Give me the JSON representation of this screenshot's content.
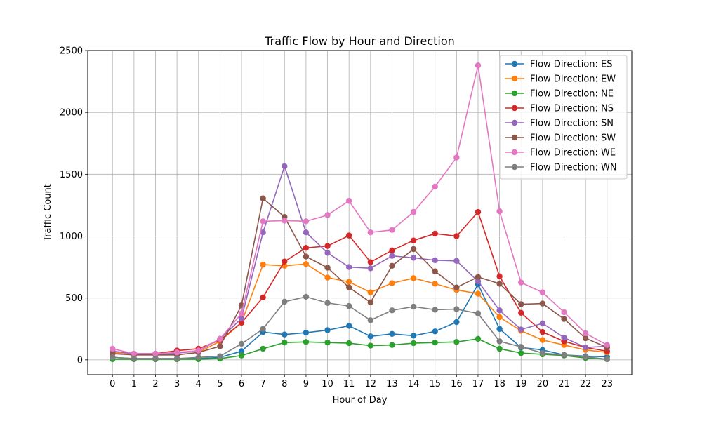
{
  "chart_data": {
    "type": "line",
    "title": "Traffic Flow by Hour and Direction",
    "xlabel": "Hour of Day",
    "ylabel": "Traffic Count",
    "x": [
      0,
      1,
      2,
      3,
      4,
      5,
      6,
      7,
      8,
      9,
      10,
      11,
      12,
      13,
      14,
      15,
      16,
      17,
      18,
      19,
      20,
      21,
      22,
      23
    ],
    "x_tick_labels": [
      "0",
      "1",
      "2",
      "3",
      "4",
      "5",
      "6",
      "7",
      "8",
      "9",
      "10",
      "11",
      "12",
      "13",
      "14",
      "15",
      "16",
      "17",
      "18",
      "19",
      "20",
      "21",
      "22",
      "23"
    ],
    "xlim": [
      -1.15,
      24.15
    ],
    "ylim": [
      -120,
      2500
    ],
    "y_ticks": [
      0,
      500,
      1000,
      1500,
      2000,
      2500
    ],
    "y_tick_labels": [
      "0",
      "500",
      "1000",
      "1500",
      "2000",
      "2500"
    ],
    "grid": true,
    "legend_position": "upper right",
    "series": [
      {
        "name": "Flow Direction: ES",
        "color": "#1f77b4",
        "values": [
          20,
          10,
          10,
          10,
          10,
          20,
          70,
          225,
          205,
          220,
          240,
          275,
          190,
          210,
          195,
          230,
          305,
          610,
          250,
          100,
          80,
          40,
          30,
          25
        ]
      },
      {
        "name": "Flow Direction: EW",
        "color": "#ff7f0e",
        "values": [
          60,
          40,
          40,
          40,
          60,
          150,
          300,
          770,
          760,
          775,
          665,
          630,
          545,
          620,
          660,
          615,
          565,
          535,
          345,
          235,
          160,
          120,
          80,
          60
        ]
      },
      {
        "name": "Flow Direction: NE",
        "color": "#2ca02c",
        "values": [
          5,
          5,
          5,
          5,
          5,
          10,
          35,
          90,
          140,
          145,
          140,
          135,
          115,
          120,
          135,
          140,
          145,
          170,
          90,
          55,
          45,
          35,
          15,
          5
        ]
      },
      {
        "name": "Flow Direction: NS",
        "color": "#d62728",
        "values": [
          70,
          50,
          50,
          75,
          90,
          160,
          300,
          505,
          795,
          905,
          920,
          1005,
          790,
          885,
          965,
          1020,
          1000,
          1195,
          675,
          380,
          225,
          150,
          100,
          70
        ]
      },
      {
        "name": "Flow Direction: SN",
        "color": "#9467bd",
        "values": [
          70,
          50,
          50,
          55,
          70,
          170,
          335,
          1030,
          1565,
          1030,
          865,
          750,
          740,
          840,
          825,
          805,
          800,
          635,
          400,
          245,
          295,
          180,
          100,
          110
        ]
      },
      {
        "name": "Flow Direction: SW",
        "color": "#8c564b",
        "values": [
          50,
          40,
          40,
          40,
          60,
          110,
          440,
          1305,
          1155,
          835,
          745,
          585,
          465,
          760,
          895,
          715,
          585,
          670,
          615,
          450,
          455,
          330,
          175,
          100
        ]
      },
      {
        "name": "Flow Direction: WE",
        "color": "#e377c2",
        "values": [
          90,
          50,
          50,
          60,
          75,
          170,
          375,
          1120,
          1125,
          1120,
          1170,
          1285,
          1030,
          1050,
          1195,
          1400,
          1635,
          2380,
          1200,
          625,
          545,
          385,
          215,
          120
        ]
      },
      {
        "name": "Flow Direction: WN",
        "color": "#7f7f7f",
        "values": [
          20,
          10,
          10,
          10,
          20,
          30,
          130,
          250,
          470,
          510,
          460,
          435,
          320,
          400,
          430,
          405,
          410,
          375,
          150,
          105,
          55,
          40,
          25,
          5
        ]
      }
    ]
  }
}
